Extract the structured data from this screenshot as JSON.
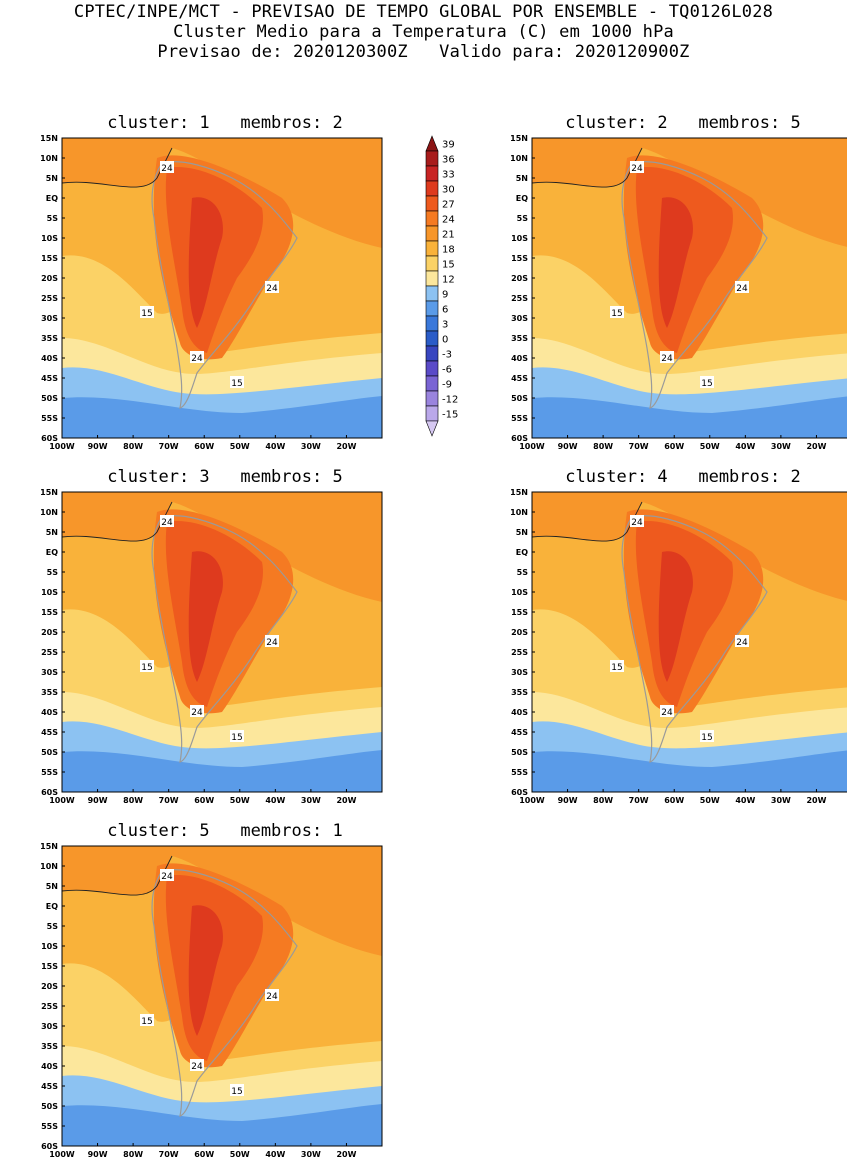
{
  "header": {
    "line1": "CPTEC/INPE/MCT - PREVISAO DE TEMPO GLOBAL POR ENSEMBLE - TQ0126L028",
    "line2": "Cluster Medio para a Temperatura (C) em 1000 hPa",
    "line3": "Previsao de: 2020120300Z   Valido para: 2020120900Z"
  },
  "panels": [
    {
      "title": "cluster: 1   membros: 2",
      "labels": [
        {
          "text": "24"
        },
        {
          "text": "24"
        },
        {
          "text": "15"
        },
        {
          "text": "24"
        },
        {
          "text": "15"
        }
      ]
    },
    {
      "title": "cluster: 2   membros: 5",
      "labels": [
        {
          "text": "24"
        },
        {
          "text": "24"
        },
        {
          "text": "15"
        },
        {
          "text": "24"
        },
        {
          "text": "15"
        }
      ]
    },
    {
      "title": "cluster: 3   membros: 5",
      "labels": [
        {
          "text": "24"
        },
        {
          "text": "24"
        },
        {
          "text": "15"
        },
        {
          "text": "24"
        },
        {
          "text": "15"
        }
      ]
    },
    {
      "title": "cluster: 4   membros: 2",
      "labels": [
        {
          "text": "24"
        },
        {
          "text": "24"
        },
        {
          "text": "15"
        },
        {
          "text": "24"
        },
        {
          "text": "15"
        }
      ]
    },
    {
      "title": "cluster: 5   membros: 1",
      "labels": [
        {
          "text": "24"
        },
        {
          "text": "24"
        },
        {
          "text": "15"
        },
        {
          "text": "24"
        },
        {
          "text": "15"
        }
      ]
    }
  ],
  "axes": {
    "lat_labels": [
      "15N",
      "10N",
      "5N",
      "EQ",
      "5S",
      "10S",
      "15S",
      "20S",
      "25S",
      "30S",
      "35S",
      "40S",
      "45S",
      "50S",
      "55S",
      "60S"
    ],
    "lon_labels": [
      "100W",
      "90W",
      "80W",
      "70W",
      "60W",
      "50W",
      "40W",
      "30W",
      "20W"
    ]
  },
  "colorbar": {
    "levels": [
      "39",
      "36",
      "33",
      "30",
      "27",
      "24",
      "21",
      "18",
      "15",
      "12",
      "9",
      "6",
      "3",
      "0",
      "-3",
      "-6",
      "-9",
      "-12",
      "-15"
    ],
    "colors": [
      "#8b1414",
      "#a81c1c",
      "#c82424",
      "#de3a1e",
      "#ee5a1e",
      "#f57a22",
      "#f7962a",
      "#f9b23a",
      "#fbd266",
      "#fce79c",
      "#8cc2f2",
      "#5a9be8",
      "#3a78da",
      "#2a5cc8",
      "#3846c0",
      "#5a4ac8",
      "#7a64d4",
      "#9a84de",
      "#baa8ea",
      "#d6c8f2"
    ]
  }
}
